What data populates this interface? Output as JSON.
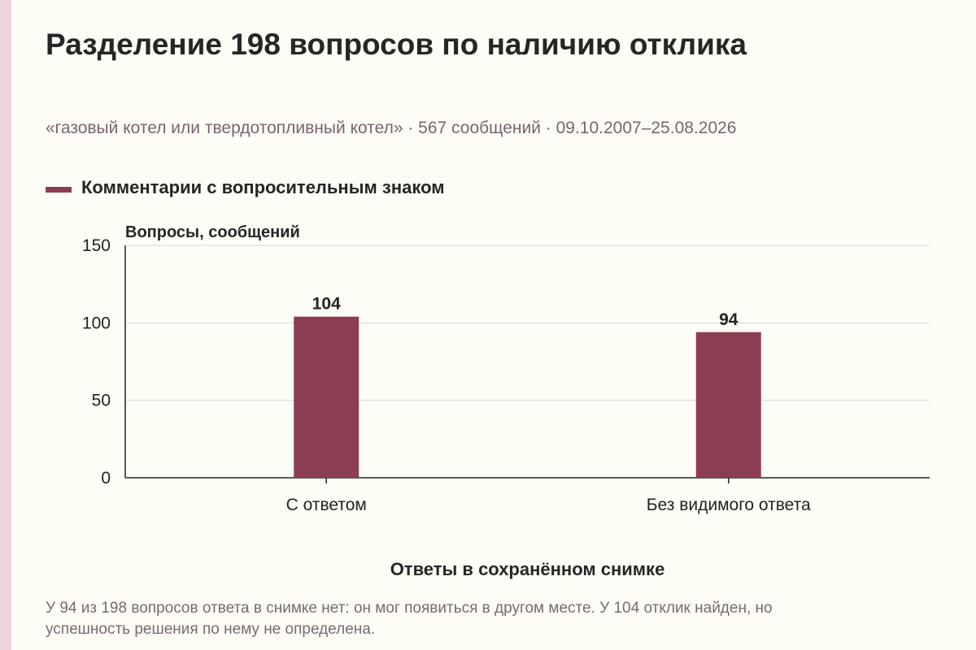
{
  "colors": {
    "bar": "#8c3d52",
    "background": "#fdfcf5",
    "stripe": "#efd3dc",
    "grid": "#d8d8d8",
    "axis": "#222222"
  },
  "chart_data": {
    "type": "bar",
    "title": "Разделение 198 вопросов по наличию отклика",
    "subtitle": "«газовый котел или твердотопливный котел» · 567 сообщений · 09.10.2007–25.08.2026",
    "xlabel": "Ответы в сохранённом снимке",
    "ylabel": "Вопросы, сообщений",
    "ylim": [
      0,
      150
    ],
    "yticks": [
      0,
      50,
      100,
      150
    ],
    "grid": true,
    "legend_position": "top-left",
    "categories": [
      "С ответом",
      "Без видимого ответа"
    ],
    "series": [
      {
        "name": "Комментарии с вопросительным знаком",
        "values": [
          104,
          94
        ]
      }
    ]
  },
  "footnote": "У 94 из 198 вопросов ответа в снимке нет: он мог появиться в другом месте. У 104 отклик найден, но успешность решения по нему не определена."
}
